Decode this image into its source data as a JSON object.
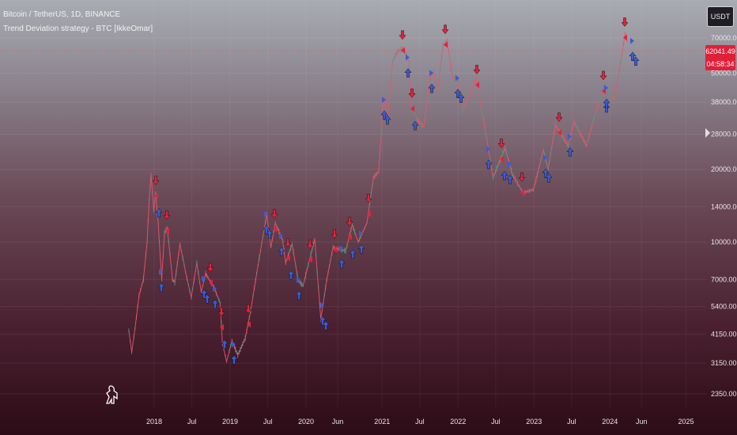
{
  "header": {
    "symbol_line": "Bitcoin / TetherUS, 1D, BINANCE",
    "strategy_line": "Trend Deviation strategy - BTC [IkkeOmar]"
  },
  "currency_button": "USDT",
  "price_tag": {
    "price": "62041.49",
    "countdown": "04:58:34"
  },
  "colors": {
    "up_arrow": "#3a5bd9",
    "down_arrow": "#e8203a",
    "candle_up": "#3fa38a",
    "candle_down": "#e8556a",
    "price_line": "#d9534f"
  },
  "chart_data": {
    "type": "line",
    "scale": "log",
    "y_ticks": [
      "70000.00",
      "50000.00",
      "38000.00",
      "28000.00",
      "20000.00",
      "14000.00",
      "10000.00",
      "7000.00",
      "5400.00",
      "4150.00",
      "3150.00",
      "2350.00"
    ],
    "y_tick_values": [
      70000,
      50000,
      38000,
      28000,
      20000,
      14000,
      10000,
      7000,
      5400,
      4150,
      3150,
      2350
    ],
    "x_ticks": [
      "2018",
      "Jul",
      "2019",
      "Jul",
      "2020",
      "Jun",
      "2021",
      "Jul",
      "2022",
      "Jul",
      "2023",
      "Jul",
      "2024",
      "Jun",
      "2025"
    ],
    "x_tick_dates": [
      "2018-01",
      "2018-07",
      "2019-01",
      "2019-07",
      "2020-01",
      "2020-06",
      "2021-01",
      "2021-07",
      "2022-01",
      "2022-07",
      "2023-01",
      "2023-07",
      "2024-01",
      "2024-06",
      "2025-01"
    ],
    "ylim": [
      2000,
      95000
    ],
    "series": [
      {
        "values": [
          [
            "2017-09-01",
            4300
          ],
          [
            "2017-09-15",
            3500
          ],
          [
            "2017-10-01",
            4400
          ],
          [
            "2017-10-20",
            6000
          ],
          [
            "2017-11-10",
            7000
          ],
          [
            "2017-11-28",
            10000
          ],
          [
            "2017-12-08",
            15000
          ],
          [
            "2017-12-17",
            19000
          ],
          [
            "2017-12-30",
            13500
          ],
          [
            "2018-01-08",
            16000
          ],
          [
            "2018-01-20",
            12000
          ],
          [
            "2018-02-06",
            7000
          ],
          [
            "2018-02-20",
            11000
          ],
          [
            "2018-03-05",
            11400
          ],
          [
            "2018-03-30",
            7000
          ],
          [
            "2018-04-10",
            6800
          ],
          [
            "2018-05-05",
            9800
          ],
          [
            "2018-06-01",
            7500
          ],
          [
            "2018-06-28",
            5900
          ],
          [
            "2018-07-25",
            8200
          ],
          [
            "2018-08-15",
            6200
          ],
          [
            "2018-09-05",
            7400
          ],
          [
            "2018-10-15",
            6500
          ],
          [
            "2018-11-14",
            5600
          ],
          [
            "2018-11-25",
            3800
          ],
          [
            "2018-12-15",
            3200
          ],
          [
            "2019-01-10",
            3900
          ],
          [
            "2019-02-07",
            3400
          ],
          [
            "2019-03-15",
            4000
          ],
          [
            "2019-04-10",
            5200
          ],
          [
            "2019-05-15",
            8000
          ],
          [
            "2019-06-26",
            13000
          ],
          [
            "2019-07-16",
            9500
          ],
          [
            "2019-08-06",
            12000
          ],
          [
            "2019-09-10",
            10200
          ],
          [
            "2019-09-25",
            8200
          ],
          [
            "2019-10-26",
            9800
          ],
          [
            "2019-11-25",
            6900
          ],
          [
            "2019-12-18",
            6600
          ],
          [
            "2020-02-12",
            10300
          ],
          [
            "2020-03-12",
            4800
          ],
          [
            "2020-04-10",
            7000
          ],
          [
            "2020-05-10",
            9500
          ],
          [
            "2020-06-15",
            9300
          ],
          [
            "2020-07-10",
            9200
          ],
          [
            "2020-08-10",
            11800
          ],
          [
            "2020-09-08",
            10000
          ],
          [
            "2020-10-20",
            12000
          ],
          [
            "2020-11-20",
            18500
          ],
          [
            "2020-12-15",
            19500
          ],
          [
            "2021-01-08",
            40000
          ],
          [
            "2021-01-25",
            32000
          ],
          [
            "2021-02-20",
            56000
          ],
          [
            "2021-03-13",
            61000
          ],
          [
            "2021-04-14",
            63500
          ],
          [
            "2021-05-10",
            56000
          ],
          [
            "2021-05-20",
            37000
          ],
          [
            "2021-06-20",
            32000
          ],
          [
            "2021-07-20",
            30000
          ],
          [
            "2021-08-20",
            48000
          ],
          [
            "2021-09-05",
            51000
          ],
          [
            "2021-09-25",
            42000
          ],
          [
            "2021-10-20",
            65000
          ],
          [
            "2021-11-10",
            68000
          ],
          [
            "2021-12-05",
            48000
          ],
          [
            "2022-01-01",
            47000
          ],
          [
            "2022-01-24",
            35000
          ],
          [
            "2022-03-28",
            47500
          ],
          [
            "2022-05-10",
            30000
          ],
          [
            "2022-06-18",
            18500
          ],
          [
            "2022-08-15",
            24500
          ],
          [
            "2022-09-20",
            19000
          ],
          [
            "2022-11-09",
            16000
          ],
          [
            "2022-12-30",
            16500
          ],
          [
            "2023-02-15",
            24000
          ],
          [
            "2023-03-10",
            20000
          ],
          [
            "2023-04-14",
            30500
          ],
          [
            "2023-06-15",
            25000
          ],
          [
            "2023-07-13",
            31500
          ],
          [
            "2023-09-11",
            25000
          ],
          [
            "2023-10-24",
            34500
          ],
          [
            "2023-12-05",
            44000
          ],
          [
            "2024-01-23",
            39000
          ],
          [
            "2024-02-28",
            60000
          ],
          [
            "2024-03-14",
            73000
          ],
          [
            "2024-03-25",
            67000
          ]
        ]
      }
    ],
    "current_price": 62041.49
  }
}
